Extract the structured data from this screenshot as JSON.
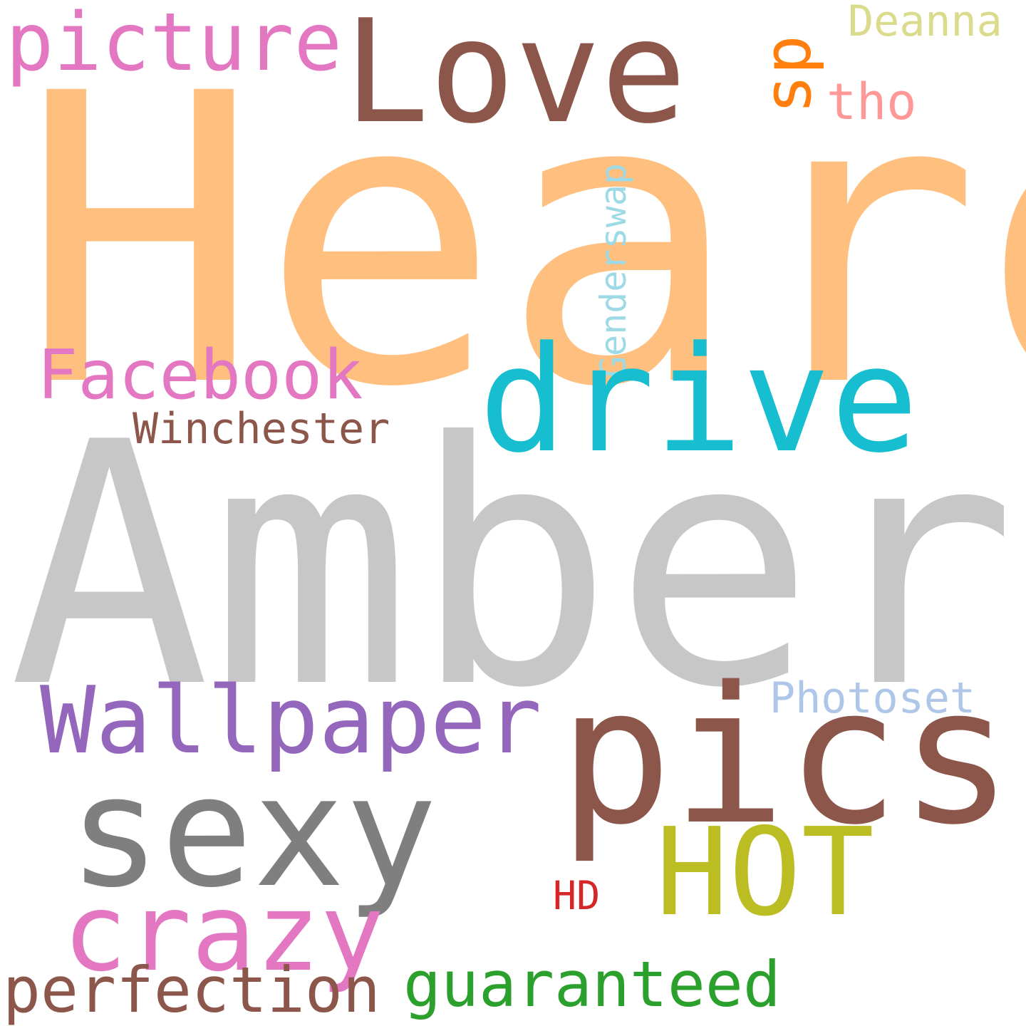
{
  "words": {
    "heard": {
      "text": "Heard",
      "color": "#ffbf7f"
    },
    "amber": {
      "text": "Amber",
      "color": "#c7c7c7"
    },
    "love": {
      "text": "Love",
      "color": "#8c564b"
    },
    "picture": {
      "text": "picture",
      "color": "#e377c2"
    },
    "sp": {
      "text": "sp",
      "color": "#ff7f0e"
    },
    "deanna": {
      "text": "Deanna",
      "color": "#dbdb8d"
    },
    "tho": {
      "text": "tho",
      "color": "#ff9896"
    },
    "genderswap": {
      "text": "Genderswap",
      "color": "#9edae5"
    },
    "drive": {
      "text": "drive",
      "color": "#17becf"
    },
    "facebook": {
      "text": "Facebook",
      "color": "#e377c2"
    },
    "winchester": {
      "text": "Winchester",
      "color": "#8c564b"
    },
    "wallpaper": {
      "text": "Wallpaper",
      "color": "#9467bd"
    },
    "photoset": {
      "text": "Photoset",
      "color": "#aec7e8"
    },
    "pics": {
      "text": "pics",
      "color": "#8c564b"
    },
    "sexy": {
      "text": "sexy",
      "color": "#7f7f7f"
    },
    "hot": {
      "text": "HOT",
      "color": "#bcbd22"
    },
    "hd": {
      "text": "HD",
      "color": "#d62728"
    },
    "crazy": {
      "text": "crazy",
      "color": "#e377c2"
    },
    "perfection": {
      "text": "perfection",
      "color": "#8c564b"
    },
    "guaranteed": {
      "text": "guaranteed",
      "color": "#2ca02c"
    }
  }
}
